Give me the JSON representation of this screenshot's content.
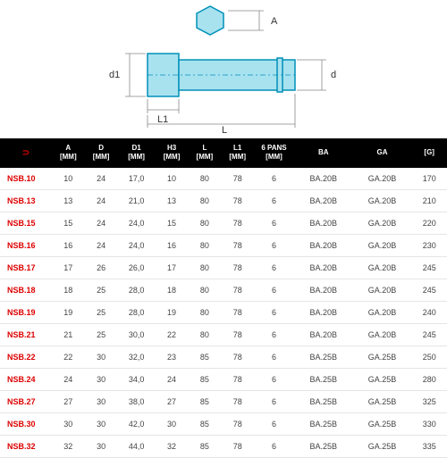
{
  "diagram": {
    "labels": {
      "A": "A",
      "d1": "d1",
      "d": "d",
      "L1": "L1",
      "L": "L"
    },
    "colors": {
      "fill": "#a8e2ef",
      "stroke": "#0090b8",
      "dim_line": "#888888",
      "text": "#333333"
    }
  },
  "table": {
    "header_icon": "⊃",
    "columns": [
      {
        "line1": "A",
        "line2": "[MM]"
      },
      {
        "line1": "D",
        "line2": "[MM]"
      },
      {
        "line1": "D1",
        "line2": "[MM]"
      },
      {
        "line1": "H3",
        "line2": "[MM]"
      },
      {
        "line1": "L",
        "line2": "[MM]"
      },
      {
        "line1": "L1",
        "line2": "[MM]"
      },
      {
        "line1": "6 PANS",
        "line2": "[MM]"
      },
      {
        "line1": "BA",
        "line2": ""
      },
      {
        "line1": "GA",
        "line2": ""
      },
      {
        "line1": "[G]",
        "line2": ""
      }
    ],
    "rows": [
      {
        "ref": "NSB.10",
        "cells": [
          "10",
          "24",
          "17,0",
          "10",
          "80",
          "78",
          "6",
          "BA.20B",
          "GA.20B",
          "170"
        ]
      },
      {
        "ref": "NSB.13",
        "cells": [
          "13",
          "24",
          "21,0",
          "13",
          "80",
          "78",
          "6",
          "BA.20B",
          "GA.20B",
          "210"
        ]
      },
      {
        "ref": "NSB.15",
        "cells": [
          "15",
          "24",
          "24,0",
          "15",
          "80",
          "78",
          "6",
          "BA.20B",
          "GA.20B",
          "220"
        ]
      },
      {
        "ref": "NSB.16",
        "cells": [
          "16",
          "24",
          "24,0",
          "16",
          "80",
          "78",
          "6",
          "BA.20B",
          "GA.20B",
          "230"
        ]
      },
      {
        "ref": "NSB.17",
        "cells": [
          "17",
          "26",
          "26,0",
          "17",
          "80",
          "78",
          "6",
          "BA.20B",
          "GA.20B",
          "245"
        ]
      },
      {
        "ref": "NSB.18",
        "cells": [
          "18",
          "25",
          "28,0",
          "18",
          "80",
          "78",
          "6",
          "BA.20B",
          "GA.20B",
          "245"
        ]
      },
      {
        "ref": "NSB.19",
        "cells": [
          "19",
          "25",
          "28,0",
          "19",
          "80",
          "78",
          "6",
          "BA.20B",
          "GA.20B",
          "240"
        ]
      },
      {
        "ref": "NSB.21",
        "cells": [
          "21",
          "25",
          "30,0",
          "22",
          "80",
          "78",
          "6",
          "BA.20B",
          "GA.20B",
          "245"
        ]
      },
      {
        "ref": "NSB.22",
        "cells": [
          "22",
          "30",
          "32,0",
          "23",
          "85",
          "78",
          "6",
          "BA.25B",
          "GA.25B",
          "250"
        ]
      },
      {
        "ref": "NSB.24",
        "cells": [
          "24",
          "30",
          "34,0",
          "24",
          "85",
          "78",
          "6",
          "BA.25B",
          "GA.25B",
          "280"
        ]
      },
      {
        "ref": "NSB.27",
        "cells": [
          "27",
          "30",
          "38,0",
          "27",
          "85",
          "78",
          "6",
          "BA.25B",
          "GA.25B",
          "325"
        ]
      },
      {
        "ref": "NSB.30",
        "cells": [
          "30",
          "30",
          "42,0",
          "30",
          "85",
          "78",
          "6",
          "BA.25B",
          "GA.25B",
          "330"
        ]
      },
      {
        "ref": "NSB.32",
        "cells": [
          "32",
          "30",
          "44,0",
          "32",
          "85",
          "78",
          "6",
          "BA.25B",
          "GA.25B",
          "335"
        ]
      }
    ]
  }
}
